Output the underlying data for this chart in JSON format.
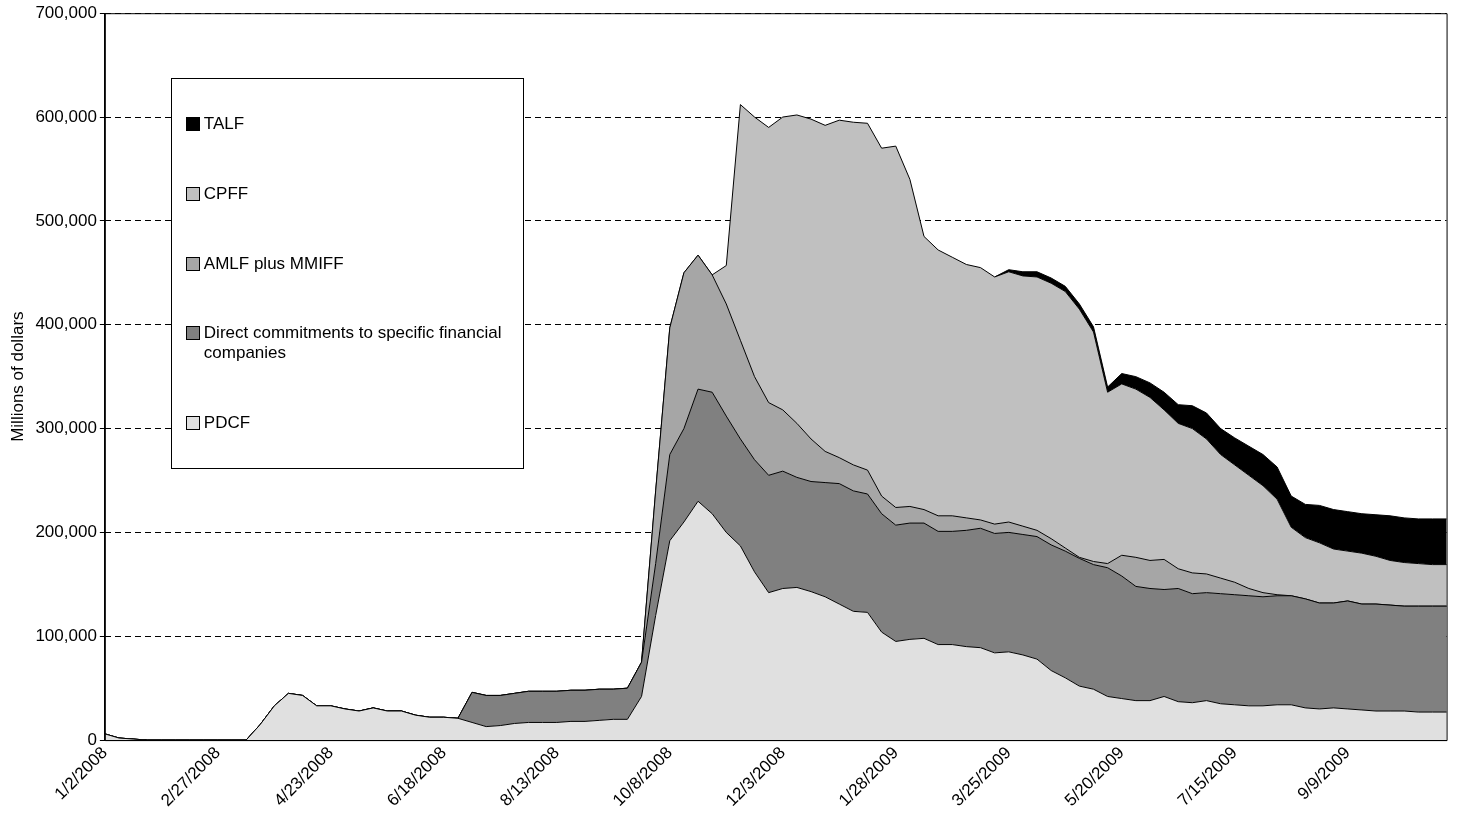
{
  "chart_data": {
    "type": "area",
    "stacked": true,
    "ylabel": "Millions of dollars",
    "categories": [
      "1/2/2008",
      null,
      null,
      null,
      null,
      null,
      null,
      null,
      "2/27/2008",
      null,
      null,
      null,
      null,
      null,
      null,
      null,
      "4/23/2008",
      null,
      null,
      null,
      null,
      null,
      null,
      null,
      "6/18/2008",
      null,
      null,
      null,
      null,
      null,
      null,
      null,
      "8/13/2008",
      null,
      null,
      null,
      null,
      null,
      null,
      null,
      "10/8/2008",
      null,
      null,
      null,
      null,
      null,
      null,
      null,
      "12/3/2008",
      null,
      null,
      null,
      null,
      null,
      null,
      null,
      "1/28/2009",
      null,
      null,
      null,
      null,
      null,
      null,
      null,
      "3/25/2009",
      null,
      null,
      null,
      null,
      null,
      null,
      null,
      "5/20/2009",
      null,
      null,
      null,
      null,
      null,
      null,
      null,
      "7/15/2009",
      null,
      null,
      null,
      null,
      null,
      null,
      null,
      "9/9/2009",
      null,
      null,
      null,
      null,
      null,
      null,
      null
    ],
    "series": [
      {
        "name": "PDCF",
        "color": "#e0e0e0",
        "values": [
          6000,
          2000,
          1000,
          0,
          0,
          0,
          0,
          0,
          0,
          0,
          0,
          15000,
          33000,
          45000,
          43000,
          33000,
          33000,
          30000,
          28000,
          31000,
          28000,
          28000,
          24000,
          22000,
          22000,
          21000,
          17000,
          13000,
          14000,
          16000,
          17000,
          17000,
          17000,
          18000,
          18000,
          19000,
          20000,
          20000,
          42000,
          120000,
          192000,
          210000,
          230000,
          218000,
          200000,
          187000,
          162000,
          142000,
          146000,
          147000,
          143000,
          138000,
          131000,
          124000,
          123000,
          104000,
          95000,
          97000,
          98000,
          92000,
          92000,
          90000,
          89000,
          84000,
          85000,
          82000,
          78000,
          67000,
          60000,
          52000,
          49000,
          42000,
          40000,
          38000,
          38000,
          42000,
          37000,
          36000,
          38000,
          35000,
          34000,
          33000,
          33000,
          34000,
          34000,
          31000,
          30000,
          31000,
          30000,
          29000,
          28000,
          28000,
          28000,
          27000,
          27000,
          27000
        ]
      },
      {
        "name": "Direct commitments to specific financial companies",
        "color": "#808080",
        "values": [
          0,
          0,
          0,
          0,
          0,
          0,
          0,
          0,
          0,
          0,
          0,
          0,
          0,
          0,
          0,
          0,
          0,
          0,
          0,
          0,
          0,
          0,
          0,
          0,
          0,
          0,
          29000,
          30000,
          29000,
          29000,
          30000,
          30000,
          30000,
          30000,
          30000,
          30000,
          29000,
          30000,
          33000,
          50000,
          83000,
          90000,
          108000,
          117000,
          112000,
          103000,
          108000,
          113000,
          113000,
          106000,
          106000,
          110000,
          116000,
          116000,
          114000,
          114000,
          112000,
          112000,
          111000,
          109000,
          109000,
          112000,
          115000,
          115000,
          115000,
          116000,
          118000,
          121000,
          122000,
          123000,
          120000,
          124000,
          118000,
          110000,
          108000,
          103000,
          109000,
          105000,
          104000,
          106000,
          106000,
          106000,
          105000,
          105000,
          105000,
          105000,
          102000,
          101000,
          104000,
          102000,
          103000,
          102000,
          101000,
          102000,
          102000,
          102000
        ]
      },
      {
        "name": "AMLF plus MMIFF",
        "color": "#a6a6a6",
        "values": [
          0,
          0,
          0,
          0,
          0,
          0,
          0,
          0,
          0,
          0,
          0,
          0,
          0,
          0,
          0,
          0,
          0,
          0,
          0,
          0,
          0,
          0,
          0,
          0,
          0,
          0,
          0,
          0,
          0,
          0,
          0,
          0,
          0,
          0,
          0,
          0,
          0,
          0,
          0,
          70000,
          122000,
          150000,
          129000,
          113000,
          108000,
          95000,
          80000,
          70000,
          59000,
          52000,
          41000,
          30000,
          25000,
          25000,
          23000,
          17000,
          17000,
          16000,
          13000,
          15000,
          15000,
          12000,
          8000,
          9000,
          10000,
          8000,
          6000,
          6000,
          3000,
          1000,
          3000,
          4000,
          20000,
          28000,
          27000,
          29000,
          19000,
          20000,
          18000,
          15000,
          12000,
          7000,
          4000,
          1000,
          0,
          0,
          0,
          0,
          0,
          0,
          0,
          0,
          0,
          0,
          0,
          0
        ]
      },
      {
        "name": "CPFF",
        "color": "#c0c0c0",
        "values": [
          0,
          0,
          0,
          0,
          0,
          0,
          0,
          0,
          0,
          0,
          0,
          0,
          0,
          0,
          0,
          0,
          0,
          0,
          0,
          0,
          0,
          0,
          0,
          0,
          0,
          0,
          0,
          0,
          0,
          0,
          0,
          0,
          0,
          0,
          0,
          0,
          0,
          0,
          0,
          0,
          0,
          0,
          0,
          0,
          37000,
          227000,
          250000,
          265000,
          282000,
          297000,
          308000,
          314000,
          325000,
          330000,
          334000,
          335000,
          348000,
          315000,
          263000,
          256000,
          249000,
          244000,
          243000,
          238000,
          241000,
          241000,
          244000,
          246000,
          247000,
          239000,
          221000,
          165000,
          165000,
          162000,
          157000,
          144000,
          140000,
          139000,
          130000,
          119000,
          113000,
          109000,
          103000,
          92000,
          66000,
          59000,
          58000,
          52000,
          48000,
          49000,
          46000,
          43000,
          42000,
          41000,
          40000,
          40000
        ]
      },
      {
        "name": "TALF",
        "color": "#000000",
        "values": [
          null,
          null,
          null,
          null,
          null,
          null,
          null,
          null,
          null,
          null,
          null,
          null,
          null,
          null,
          null,
          null,
          null,
          null,
          null,
          null,
          null,
          null,
          null,
          null,
          null,
          null,
          null,
          null,
          null,
          null,
          null,
          null,
          null,
          null,
          null,
          null,
          null,
          null,
          null,
          null,
          null,
          null,
          null,
          null,
          null,
          null,
          null,
          null,
          null,
          null,
          null,
          null,
          null,
          null,
          null,
          null,
          null,
          null,
          null,
          null,
          null,
          null,
          null,
          0,
          2000,
          4000,
          5000,
          5000,
          5000,
          5000,
          5000,
          5000,
          10000,
          12000,
          14000,
          17000,
          18000,
          22000,
          25000,
          25000,
          26000,
          28000,
          30000,
          31000,
          30000,
          32000,
          36000,
          38000,
          38000,
          38000,
          40000,
          43000,
          43000,
          43000,
          44000,
          44000
        ]
      }
    ],
    "ylim": [
      0,
      700000
    ],
    "yticks": [
      0,
      {
        "value": 100000,
        "label": "100,000"
      },
      {
        "value": 200000,
        "label": "200,000"
      },
      {
        "value": 300000,
        "label": "300,000"
      },
      {
        "value": 400000,
        "label": "400,000"
      },
      {
        "value": 500000,
        "label": "500,000"
      },
      {
        "value": 600000,
        "label": "600,000"
      },
      {
        "value": 700000,
        "label": "700,000"
      }
    ],
    "grid": "y",
    "legend": "top left"
  }
}
